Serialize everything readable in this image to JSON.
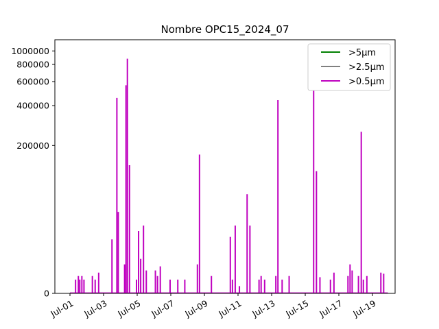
{
  "chart_data": {
    "type": "line",
    "title": "Nombre OPC15_2024_07",
    "xlabel": "",
    "ylabel": "",
    "x_axis": {
      "kind": "date",
      "range": [
        "2024-06-30T12:00",
        "2024-07-20T12:00"
      ],
      "tick_labels": [
        "Jul-01",
        "Jul-03",
        "Jul-05",
        "Jul-07",
        "Jul-09",
        "Jul-11",
        "Jul-13",
        "Jul-15",
        "Jul-17",
        "Jul-19"
      ],
      "tick_dates": [
        "2024-07-01",
        "2024-07-03",
        "2024-07-05",
        "2024-07-07",
        "2024-07-09",
        "2024-07-11",
        "2024-07-13",
        "2024-07-15",
        "2024-07-17",
        "2024-07-19"
      ]
    },
    "y_axis": {
      "scale": "symlog",
      "range": [
        0,
        1080000
      ],
      "ticks": [
        0,
        200000,
        400000,
        600000,
        800000,
        1000000
      ],
      "tick_labels": [
        "0",
        "200000",
        "400000",
        "600000",
        "800000",
        "1000000"
      ]
    },
    "legend": {
      "placement": "top-right"
    },
    "series": [
      {
        "name": ">5µm",
        "color": "#008000",
        "points": []
      },
      {
        "name": ">2.5µm",
        "color": "#808080",
        "points": []
      },
      {
        "name": ">0.5µm",
        "color": "#bf00bf",
        "points": [
          [
            "2024-07-01T08:00",
            5000
          ],
          [
            "2024-07-01T12:00",
            6500
          ],
          [
            "2024-07-01T14:00",
            5000
          ],
          [
            "2024-07-01T17:00",
            6500
          ],
          [
            "2024-07-01T20:00",
            5000
          ],
          [
            "2024-07-02T08:00",
            6500
          ],
          [
            "2024-07-02T12:00",
            5000
          ],
          [
            "2024-07-02T17:00",
            8000
          ],
          [
            "2024-07-03T12:00",
            28000
          ],
          [
            "2024-07-03T19:00",
            456000
          ],
          [
            "2024-07-03T21:00",
            55000
          ],
          [
            "2024-07-04T06:00",
            12000
          ],
          [
            "2024-07-04T08:00",
            565000
          ],
          [
            "2024-07-04T10:00",
            880000
          ],
          [
            "2024-07-04T13:00",
            140000
          ],
          [
            "2024-07-04T23:00",
            5000
          ],
          [
            "2024-07-05T02:00",
            35000
          ],
          [
            "2024-07-05T05:00",
            15000
          ],
          [
            "2024-07-05T09:00",
            40000
          ],
          [
            "2024-07-05T13:00",
            9000
          ],
          [
            "2024-07-06T02:00",
            9000
          ],
          [
            "2024-07-06T05:00",
            6500
          ],
          [
            "2024-07-06T09:00",
            11000
          ],
          [
            "2024-07-06T23:00",
            5000
          ],
          [
            "2024-07-07T10:00",
            5000
          ],
          [
            "2024-07-07T20:00",
            5000
          ],
          [
            "2024-07-08T14:00",
            12000
          ],
          [
            "2024-07-08T17:00",
            170000
          ],
          [
            "2024-07-09T10:00",
            6500
          ],
          [
            "2024-07-10T13:00",
            30000
          ],
          [
            "2024-07-10T16:00",
            5000
          ],
          [
            "2024-07-10T20:00",
            40000
          ],
          [
            "2024-07-11T02:00",
            2500
          ],
          [
            "2024-07-11T13:00",
            80000
          ],
          [
            "2024-07-11T17:00",
            40000
          ],
          [
            "2024-07-12T06:00",
            5000
          ],
          [
            "2024-07-12T09:00",
            6500
          ],
          [
            "2024-07-12T14:00",
            5000
          ],
          [
            "2024-07-13T06:00",
            6500
          ],
          [
            "2024-07-13T09:00",
            440000
          ],
          [
            "2024-07-13T15:00",
            5000
          ],
          [
            "2024-07-14T01:00",
            6500
          ],
          [
            "2024-07-15T12:00",
            1030000
          ],
          [
            "2024-07-15T16:00",
            125000
          ],
          [
            "2024-07-15T21:00",
            6000
          ],
          [
            "2024-07-16T12:00",
            5000
          ],
          [
            "2024-07-16T17:00",
            8000
          ],
          [
            "2024-07-17T13:00",
            6500
          ],
          [
            "2024-07-17T16:00",
            12000
          ],
          [
            "2024-07-17T19:00",
            9000
          ],
          [
            "2024-07-18T04:00",
            6500
          ],
          [
            "2024-07-18T08:00",
            255000
          ],
          [
            "2024-07-18T11:00",
            5000
          ],
          [
            "2024-07-18T16:00",
            6500
          ],
          [
            "2024-07-19T12:00",
            8000
          ],
          [
            "2024-07-19T16:00",
            7500
          ]
        ]
      }
    ]
  }
}
